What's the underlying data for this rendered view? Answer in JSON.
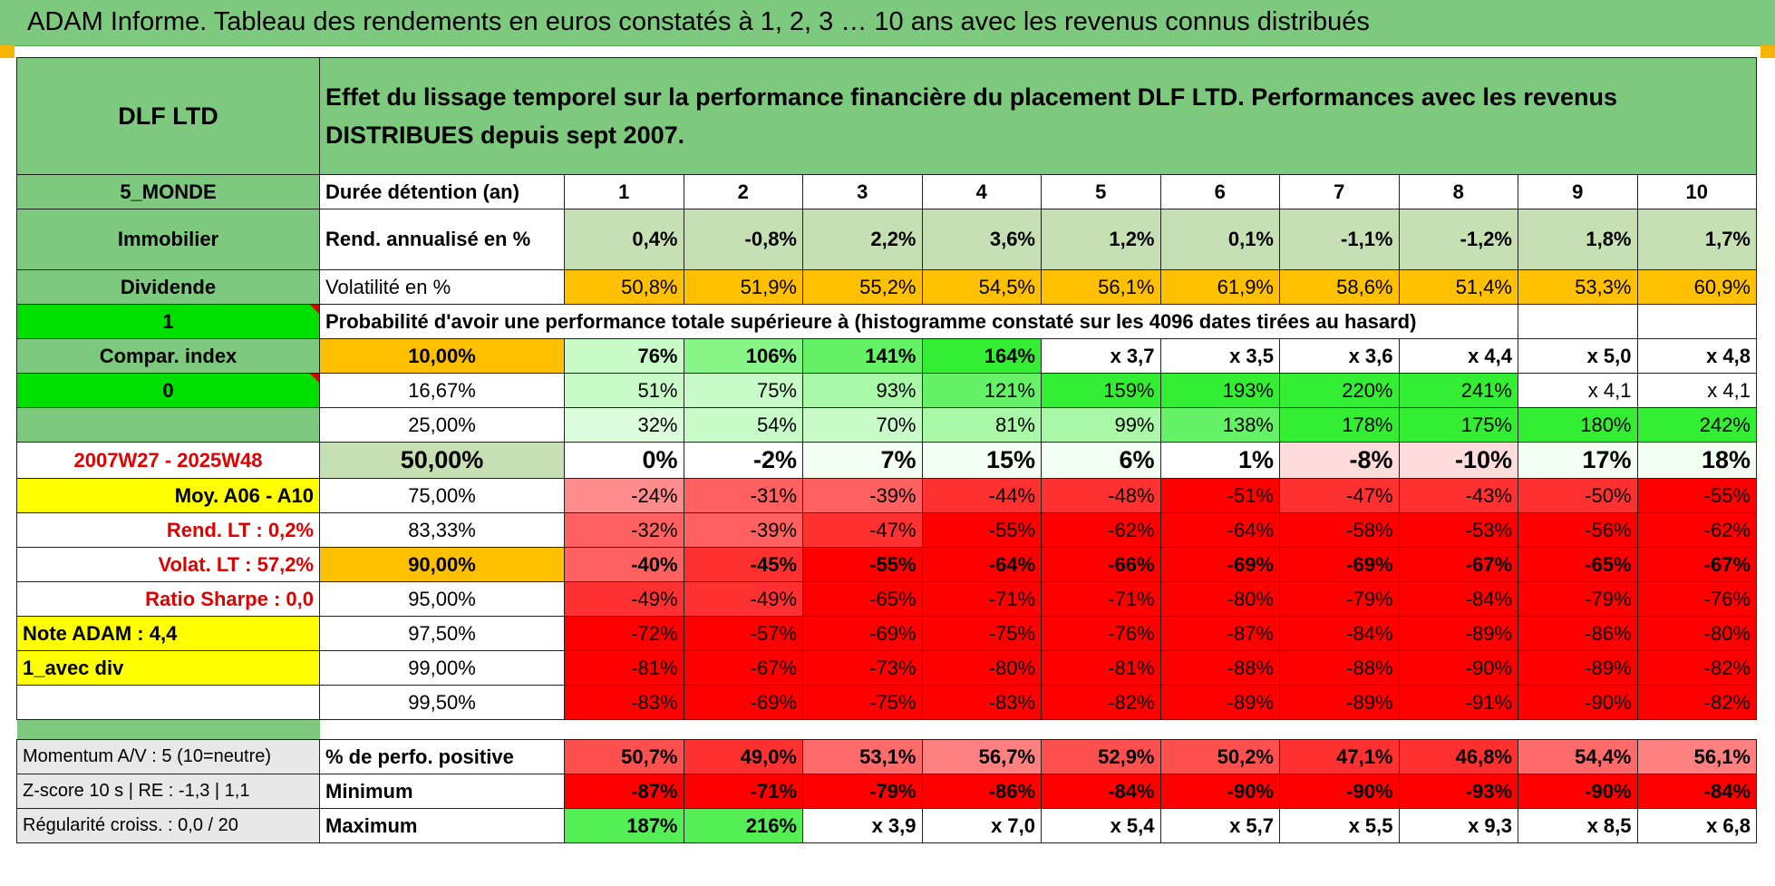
{
  "title": "ADAM Informe. Tableau des rendements en euros constatés à 1, 2, 3 … 10 ans avec les revenus connus distribués",
  "colors": {
    "header_green": "#7dc97d",
    "orange": "#ffc000",
    "red": "#ff0000",
    "bright_green": "#00e000",
    "yellow": "#ffff00",
    "label_red": "#e00000"
  },
  "fund": {
    "name": "DLF LTD",
    "description": "Effet du lissage temporel sur la performance financière du placement DLF LTD. Performances avec les revenus DISTRIBUES depuis sept 2007.",
    "zone": "5_MONDE",
    "category": "Immobilier",
    "income": "Dividende",
    "flag1": "1",
    "compar": "Compar. index",
    "flag0": "0",
    "period": "2007W27 - 2025W48",
    "moy": "Moy. A06 - A10",
    "rend_lt": "Rend. LT :    0,2%",
    "volat_lt": "Volat. LT :    57,2%",
    "sharpe": "Ratio Sharpe :     0,0",
    "note": "Note ADAM : 4,4",
    "div_label": "1_avec div"
  },
  "labels": {
    "duree": "Durée détention (an)",
    "rend": "Rend. annualisé en %",
    "vol": "Volatilité en %",
    "proba": "Probabilité d'avoir une performance totale supérieure à (histogramme constaté sur les 4096 dates tirées au hasard)",
    "momentum": "Momentum A/V : 5 (10=neutre)",
    "zscore": "Z-score 10 s | RE : -1,3 | 1,1",
    "regul": "Régularité croiss. : 0,0 / 20",
    "pos": "% de perfo. positive",
    "min": "Minimum",
    "max": "Maximum"
  },
  "years": [
    "1",
    "2",
    "3",
    "4",
    "5",
    "6",
    "7",
    "8",
    "9",
    "10"
  ],
  "rend": [
    "0,4%",
    "-0,8%",
    "2,2%",
    "3,6%",
    "1,2%",
    "0,1%",
    "-1,1%",
    "-1,2%",
    "1,8%",
    "1,7%"
  ],
  "vol": [
    "50,8%",
    "51,9%",
    "55,2%",
    "54,5%",
    "56,1%",
    "61,9%",
    "58,6%",
    "51,4%",
    "53,3%",
    "60,9%"
  ],
  "quantiles": [
    {
      "p": "10,00%",
      "v": [
        "76%",
        "106%",
        "141%",
        "164%",
        "x 3,7",
        "x 3,5",
        "x 3,6",
        "x 4,4",
        "x 5,0",
        "x 4,8"
      ]
    },
    {
      "p": "16,67%",
      "v": [
        "51%",
        "75%",
        "93%",
        "121%",
        "159%",
        "193%",
        "220%",
        "241%",
        "x 4,1",
        "x 4,1"
      ]
    },
    {
      "p": "25,00%",
      "v": [
        "32%",
        "54%",
        "70%",
        "81%",
        "99%",
        "138%",
        "178%",
        "175%",
        "180%",
        "242%"
      ]
    },
    {
      "p": "50,00%",
      "v": [
        "0%",
        "-2%",
        "7%",
        "15%",
        "6%",
        "1%",
        "-8%",
        "-10%",
        "17%",
        "18%"
      ]
    },
    {
      "p": "75,00%",
      "v": [
        "-24%",
        "-31%",
        "-39%",
        "-44%",
        "-48%",
        "-51%",
        "-47%",
        "-43%",
        "-50%",
        "-55%"
      ]
    },
    {
      "p": "83,33%",
      "v": [
        "-32%",
        "-39%",
        "-47%",
        "-55%",
        "-62%",
        "-64%",
        "-58%",
        "-53%",
        "-56%",
        "-62%"
      ]
    },
    {
      "p": "90,00%",
      "v": [
        "-40%",
        "-45%",
        "-55%",
        "-64%",
        "-66%",
        "-69%",
        "-69%",
        "-67%",
        "-65%",
        "-67%"
      ]
    },
    {
      "p": "95,00%",
      "v": [
        "-49%",
        "-49%",
        "-65%",
        "-71%",
        "-71%",
        "-80%",
        "-79%",
        "-84%",
        "-79%",
        "-76%"
      ]
    },
    {
      "p": "97,50%",
      "v": [
        "-72%",
        "-57%",
        "-69%",
        "-75%",
        "-76%",
        "-87%",
        "-84%",
        "-89%",
        "-86%",
        "-80%"
      ]
    },
    {
      "p": "99,00%",
      "v": [
        "-81%",
        "-67%",
        "-73%",
        "-80%",
        "-81%",
        "-88%",
        "-88%",
        "-90%",
        "-89%",
        "-82%"
      ]
    },
    {
      "p": "99,50%",
      "v": [
        "-83%",
        "-69%",
        "-75%",
        "-83%",
        "-82%",
        "-89%",
        "-89%",
        "-91%",
        "-90%",
        "-82%"
      ]
    }
  ],
  "pos": [
    "50,7%",
    "49,0%",
    "53,1%",
    "56,7%",
    "52,9%",
    "50,2%",
    "47,1%",
    "46,8%",
    "54,4%",
    "56,1%"
  ],
  "min": [
    "-87%",
    "-71%",
    "-79%",
    "-86%",
    "-84%",
    "-90%",
    "-90%",
    "-93%",
    "-90%",
    "-84%"
  ],
  "max": [
    "187%",
    "216%",
    "x 3,9",
    "x 7,0",
    "x 5,4",
    "x 5,7",
    "x 5,5",
    "x 9,3",
    "x 8,5",
    "x 6,8"
  ]
}
